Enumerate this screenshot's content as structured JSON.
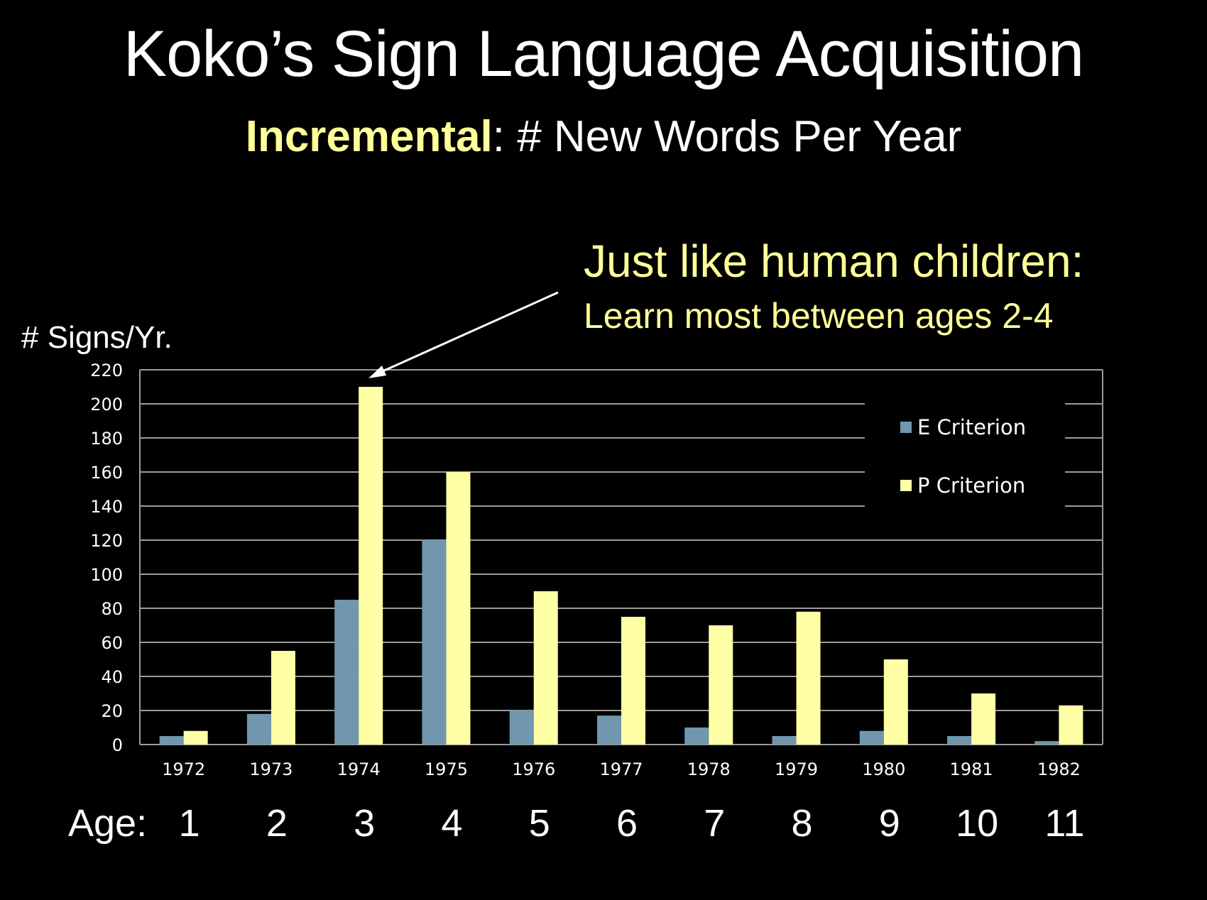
{
  "slide": {
    "title": "Koko’s Sign Language Acquisition",
    "subtitle_highlight": "Incremental",
    "subtitle_rest": ":  # New Words Per Year",
    "callout_main": "Just like human children:",
    "callout_sub": "Learn most between ages 2-4",
    "age_label": "Age:",
    "ages": [
      "1",
      "2",
      "3",
      "4",
      "5",
      "6",
      "7",
      "8",
      "9",
      "10",
      "11"
    ]
  },
  "chart_data": {
    "type": "bar",
    "title": "",
    "xlabel": "",
    "ylabel": "# Signs/Yr.",
    "ylim": [
      0,
      220
    ],
    "yticks": [
      0,
      20,
      40,
      60,
      80,
      100,
      120,
      140,
      160,
      180,
      200,
      220
    ],
    "categories": [
      "1972",
      "1973",
      "1974",
      "1975",
      "1976",
      "1977",
      "1978",
      "1979",
      "1980",
      "1981",
      "1982"
    ],
    "series": [
      {
        "name": "E Criterion",
        "color": "#7097ae",
        "values": [
          5,
          18,
          85,
          120,
          20,
          17,
          10,
          5,
          8,
          5,
          2
        ]
      },
      {
        "name": "P Criterion",
        "color": "#ffffa6",
        "values": [
          8,
          55,
          210,
          160,
          90,
          75,
          70,
          78,
          50,
          30,
          23
        ]
      }
    ],
    "grid": true,
    "legend_position": "top-right",
    "colors": {
      "grid": "#9a9a9a",
      "text": "#ffffff",
      "background": "#000000"
    }
  }
}
